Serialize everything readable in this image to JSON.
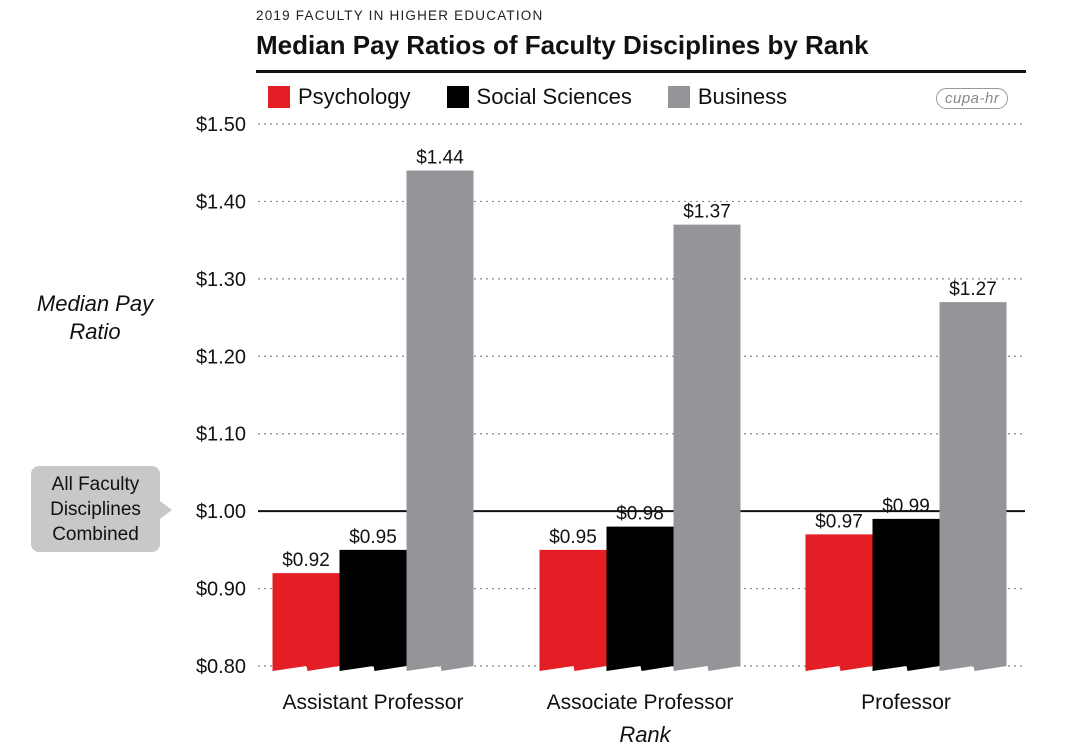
{
  "chart_data": {
    "type": "bar",
    "supertitle": "2019 FACULTY IN HIGHER EDUCATION",
    "title": "Median Pay Ratios of Faculty Disciplines by Rank",
    "xlabel": "Rank",
    "ylabel": "Median Pay Ratio",
    "categories": [
      "Assistant Professor",
      "Associate Professor",
      "Professor"
    ],
    "series": [
      {
        "name": "Psychology",
        "color": "#e31e24",
        "values": [
          0.92,
          0.95,
          0.97
        ],
        "labels": [
          "$0.92",
          "$0.95",
          "$0.97"
        ]
      },
      {
        "name": "Social Sciences",
        "color": "#000000",
        "values": [
          0.95,
          0.98,
          0.99
        ],
        "labels": [
          "$0.95",
          "$0.98",
          "$0.99"
        ]
      },
      {
        "name": "Business",
        "color": "#939598",
        "values": [
          1.44,
          1.37,
          1.27
        ],
        "labels": [
          "$1.44",
          "$1.37",
          "$1.27"
        ]
      }
    ],
    "ylim": [
      0.8,
      1.5
    ],
    "yticks": [
      0.8,
      0.9,
      1.0,
      1.1,
      1.2,
      1.3,
      1.4,
      1.5
    ],
    "ytick_labels": [
      "$0.80",
      "$0.90",
      "$1.00",
      "$1.10",
      "$1.20",
      "$1.30",
      "$1.40",
      "$1.50"
    ],
    "grid": "dotted-horizontal",
    "legend_position": "top-left",
    "reference_line": {
      "value": 1.0,
      "label": "All Faculty\nDisciplines\nCombined"
    }
  },
  "logo_text": "cupa-hr"
}
